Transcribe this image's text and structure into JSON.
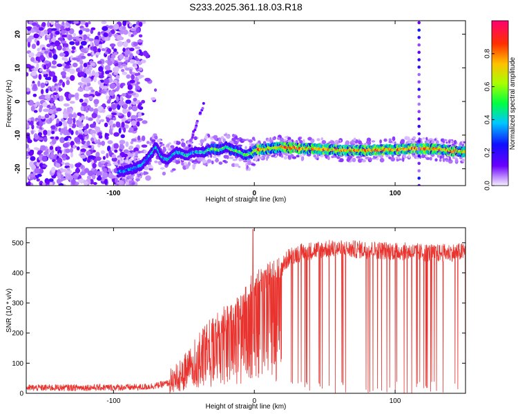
{
  "figure_title": "S233.2025.361.18.03.R18",
  "colors": {
    "snr_line": "#e8332e",
    "axis": "#000000",
    "colormap": [
      "#f4eefc",
      "#a060ff",
      "#5a00ff",
      "#1a1aff",
      "#00b8ff",
      "#00ff50",
      "#c8ff00",
      "#ffb000",
      "#ff2000",
      "#ff0070"
    ]
  },
  "chart_data": [
    {
      "type": "heatmap",
      "title": "S233.2025.361.18.03.R18",
      "xlabel": "Height of straight line (km)",
      "ylabel": "Frequency (Hz)",
      "xlim": [
        -162,
        150
      ],
      "ylim": [
        -25,
        24
      ],
      "xticks": [
        -100,
        0,
        100
      ],
      "xtick_labels": [
        "-100",
        "0",
        "100"
      ],
      "yticks": [
        -20,
        -10,
        0,
        10,
        20
      ],
      "ytick_labels": [
        "-20",
        "-10",
        "0",
        "10",
        "20"
      ],
      "colorbar_label": "Normalized spectral amplitude",
      "colorbar_range": [
        0.0,
        1.0
      ],
      "colorbar_ticks": [
        0.0,
        0.2,
        0.4,
        0.6,
        0.8
      ],
      "colorbar_tick_labels": [
        "0.0",
        "0.2",
        "0.4",
        "0.6",
        "0.8"
      ],
      "noise_region_x": [
        -162,
        -80
      ],
      "spike_x": 117,
      "ridge": {
        "x": [
          -97,
          -90,
          -80,
          -74,
          -70,
          -66,
          -62,
          -55,
          -48,
          -42,
          -36,
          -30,
          -25,
          -20,
          -15,
          -10,
          -6,
          -2,
          0,
          10,
          20,
          30,
          40,
          60,
          80,
          100,
          112,
          125,
          135,
          150
        ],
        "y": [
          -21,
          -20.5,
          -19,
          -16,
          -13.5,
          -16.5,
          -17.5,
          -15,
          -16,
          -15,
          -15,
          -14,
          -14.5,
          -13.5,
          -14.5,
          -15,
          -16,
          -15.5,
          -14.5,
          -14,
          -13.5,
          -14,
          -14,
          -14.5,
          -14.5,
          -14.2,
          -14,
          -14,
          -14.5,
          -15
        ]
      }
    },
    {
      "type": "line",
      "xlabel": "Height of straight line (km)",
      "ylabel": "SNR (10 * v/v)",
      "xlim": [
        -162,
        150
      ],
      "ylim": [
        0,
        550
      ],
      "xticks": [
        -100,
        0,
        100
      ],
      "xtick_labels": [
        "-100",
        "0",
        "100"
      ],
      "yticks": [
        0,
        100,
        200,
        300,
        400,
        500
      ],
      "ytick_labels": [
        "0",
        "100",
        "200",
        "300",
        "400",
        "500"
      ],
      "series": [
        {
          "name": "SNR",
          "envelope_x": [
            -162,
            -80,
            -70,
            -60,
            -50,
            -40,
            -30,
            -20,
            -10,
            -2,
            2,
            10,
            18,
            25,
            35,
            50,
            70,
            90,
            110,
            130,
            150
          ],
          "envelope_y": [
            18,
            20,
            25,
            35,
            80,
            150,
            210,
            250,
            280,
            350,
            370,
            390,
            410,
            455,
            470,
            480,
            478,
            475,
            470,
            465,
            470
          ],
          "peak": {
            "x": -1,
            "y": 545
          }
        }
      ]
    }
  ]
}
